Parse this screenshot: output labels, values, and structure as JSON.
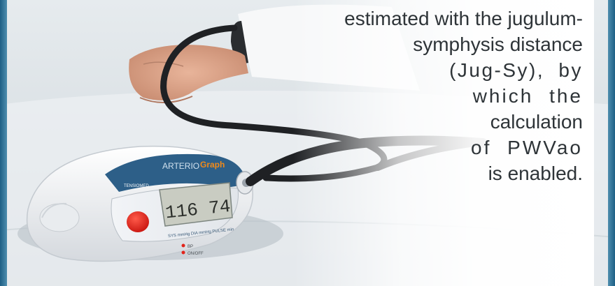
{
  "caption_lines": [
    "estimated with the jugulum-",
    "symphysis distance",
    "(Jug-Sy), by",
    "which the",
    "calculation",
    "of PWVao",
    "is enabled."
  ],
  "device": {
    "brand_prefix": "ARTERIO",
    "brand_suffix": "Graph",
    "maker_label": "TENSIOMED",
    "display_reading": "116 74",
    "function_labels": "SYS mmHg  DIA mmHg  PULSE min",
    "button_labels": [
      "BP",
      "ON/OFF"
    ]
  },
  "colors": {
    "frame_blue": "#2b6f92",
    "device_panel_blue": "#2d5f88",
    "button_red": "#e2231a"
  }
}
